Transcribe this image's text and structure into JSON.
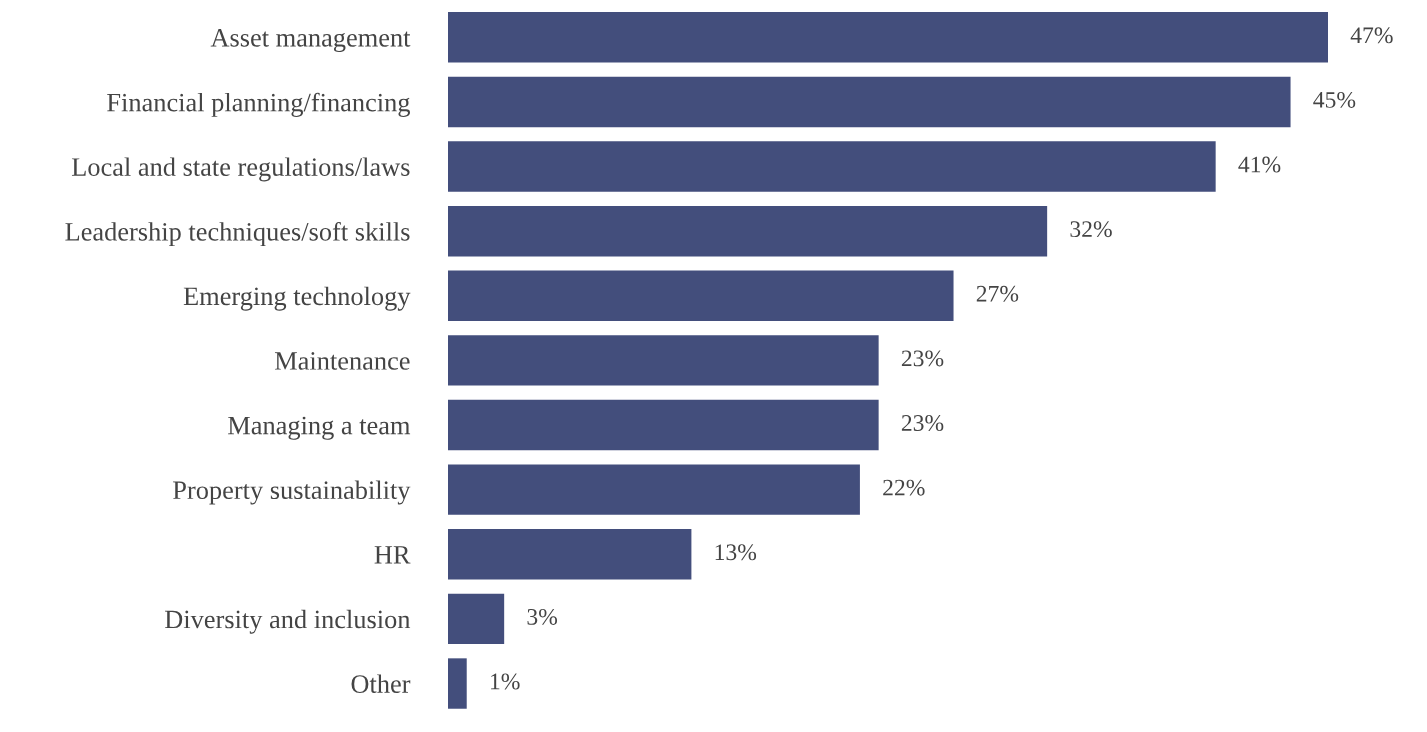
{
  "chart_data": {
    "type": "bar",
    "orientation": "horizontal",
    "categories": [
      "Asset management",
      "Financial planning/financing",
      "Local and state regulations/laws",
      "Leadership techniques/soft skills",
      "Emerging technology",
      "Maintenance",
      "Managing a team",
      "Property sustainability",
      "HR",
      "Diversity and inclusion",
      "Other"
    ],
    "values": [
      47,
      45,
      41,
      32,
      27,
      23,
      23,
      22,
      13,
      3,
      1
    ],
    "value_labels": [
      "47%",
      "45%",
      "41%",
      "32%",
      "27%",
      "23%",
      "23%",
      "22%",
      "13%",
      "3%",
      "1%"
    ],
    "color": "#434e7c"
  }
}
